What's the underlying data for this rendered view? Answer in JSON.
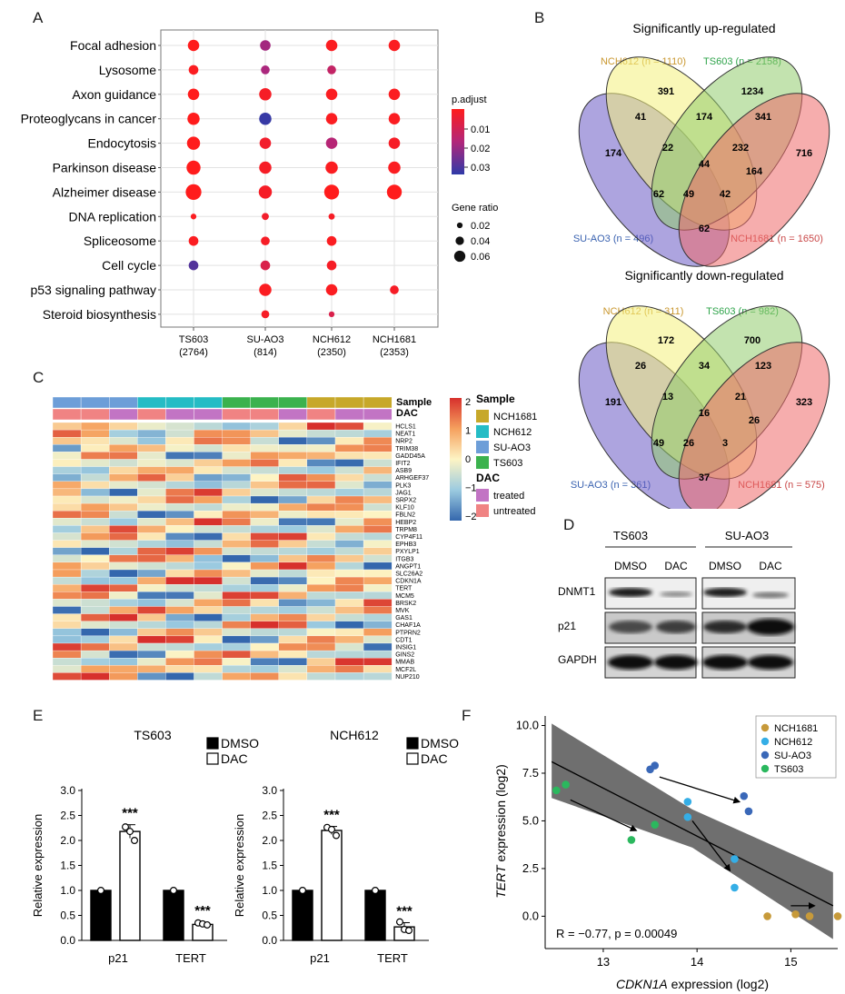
{
  "panels": {
    "a": "A",
    "b": "B",
    "c": "C",
    "d": "D",
    "e": "E",
    "f": "F"
  },
  "dotplot": {
    "pathways": [
      "Focal adhesion",
      "Lysosome",
      "Axon guidance",
      "Proteoglycans in cancer",
      "Endocytosis",
      "Parkinson disease",
      "Alzheimer disease",
      "DNA replication",
      "Spliceosome",
      "Cell cycle",
      "p53 signaling pathway",
      "Steroid biosynthesis"
    ],
    "samples": [
      {
        "name": "TS603",
        "count": "(2764)"
      },
      {
        "name": "SU-AO3",
        "count": "(814)"
      },
      {
        "name": "NCH612",
        "count": "(2350)"
      },
      {
        "name": "NCH1681",
        "count": "(2353)"
      }
    ],
    "dots": [
      {
        "p": 0,
        "s": 0,
        "ratio": 0.045,
        "padj": 0.001
      },
      {
        "p": 0,
        "s": 1,
        "ratio": 0.04,
        "padj": 0.021
      },
      {
        "p": 0,
        "s": 2,
        "ratio": 0.045,
        "padj": 0.002
      },
      {
        "p": 0,
        "s": 3,
        "ratio": 0.045,
        "padj": 0.002
      },
      {
        "p": 1,
        "s": 0,
        "ratio": 0.035,
        "padj": 0.002
      },
      {
        "p": 1,
        "s": 1,
        "ratio": 0.03,
        "padj": 0.02
      },
      {
        "p": 1,
        "s": 2,
        "ratio": 0.03,
        "padj": 0.015
      },
      {
        "p": 2,
        "s": 0,
        "ratio": 0.045,
        "padj": 0.001
      },
      {
        "p": 2,
        "s": 1,
        "ratio": 0.05,
        "padj": 0.003
      },
      {
        "p": 2,
        "s": 2,
        "ratio": 0.045,
        "padj": 0.002
      },
      {
        "p": 2,
        "s": 3,
        "ratio": 0.045,
        "padj": 0.002
      },
      {
        "p": 3,
        "s": 0,
        "ratio": 0.05,
        "padj": 0.001
      },
      {
        "p": 3,
        "s": 1,
        "ratio": 0.05,
        "padj": 0.036
      },
      {
        "p": 3,
        "s": 2,
        "ratio": 0.045,
        "padj": 0.002
      },
      {
        "p": 3,
        "s": 3,
        "ratio": 0.045,
        "padj": 0.002
      },
      {
        "p": 4,
        "s": 0,
        "ratio": 0.055,
        "padj": 0.001
      },
      {
        "p": 4,
        "s": 1,
        "ratio": 0.045,
        "padj": 0.004
      },
      {
        "p": 4,
        "s": 2,
        "ratio": 0.045,
        "padj": 0.018
      },
      {
        "p": 4,
        "s": 3,
        "ratio": 0.045,
        "padj": 0.003
      },
      {
        "p": 5,
        "s": 0,
        "ratio": 0.06,
        "padj": 0.001
      },
      {
        "p": 5,
        "s": 1,
        "ratio": 0.05,
        "padj": 0.003
      },
      {
        "p": 5,
        "s": 2,
        "ratio": 0.05,
        "padj": 0.002
      },
      {
        "p": 5,
        "s": 3,
        "ratio": 0.05,
        "padj": 0.002
      },
      {
        "p": 6,
        "s": 0,
        "ratio": 0.07,
        "padj": 0.001
      },
      {
        "p": 6,
        "s": 1,
        "ratio": 0.055,
        "padj": 0.003
      },
      {
        "p": 6,
        "s": 2,
        "ratio": 0.065,
        "padj": 0.001
      },
      {
        "p": 6,
        "s": 3,
        "ratio": 0.065,
        "padj": 0.001
      },
      {
        "p": 7,
        "s": 0,
        "ratio": 0.012,
        "padj": 0.002
      },
      {
        "p": 7,
        "s": 1,
        "ratio": 0.02,
        "padj": 0.004
      },
      {
        "p": 7,
        "s": 2,
        "ratio": 0.015,
        "padj": 0.003
      },
      {
        "p": 8,
        "s": 0,
        "ratio": 0.035,
        "padj": 0.002
      },
      {
        "p": 8,
        "s": 1,
        "ratio": 0.03,
        "padj": 0.003
      },
      {
        "p": 8,
        "s": 2,
        "ratio": 0.035,
        "padj": 0.002
      },
      {
        "p": 9,
        "s": 0,
        "ratio": 0.035,
        "padj": 0.032
      },
      {
        "p": 9,
        "s": 1,
        "ratio": 0.035,
        "padj": 0.01
      },
      {
        "p": 9,
        "s": 2,
        "ratio": 0.035,
        "padj": 0.003
      },
      {
        "p": 10,
        "s": 1,
        "ratio": 0.05,
        "padj": 0.002
      },
      {
        "p": 10,
        "s": 2,
        "ratio": 0.045,
        "padj": 0.002
      },
      {
        "p": 10,
        "s": 3,
        "ratio": 0.03,
        "padj": 0.003
      },
      {
        "p": 11,
        "s": 1,
        "ratio": 0.025,
        "padj": 0.003
      },
      {
        "p": 11,
        "s": 2,
        "ratio": 0.012,
        "padj": 0.01
      }
    ],
    "legend": {
      "padj_title": "p.adjust",
      "padj_ticks": [
        "0.01",
        "0.02",
        "0.03"
      ],
      "ratio_title": "Gene ratio",
      "ratio_items": [
        {
          "label": "0.02",
          "ratio": 0.02
        },
        {
          "label": "0.04",
          "ratio": 0.04
        },
        {
          "label": "0.06",
          "ratio": 0.06
        }
      ]
    }
  },
  "venn": {
    "up": {
      "title": "Significantly up-regulated",
      "labels": {
        "nch612": "NCH612 (n = 1110)",
        "ts603": "TS603 (n = 2158)",
        "suao3": "SU-AO3 (n = 496)",
        "nch1681": "NCH1681 (n = 1650)"
      },
      "counts": [
        "174",
        "391",
        "1234",
        "716",
        "41",
        "174",
        "341",
        "22",
        "232",
        "44",
        "164",
        "62",
        "49",
        "42",
        "62"
      ]
    },
    "down": {
      "title": "Significantly down-regulated",
      "labels": {
        "nch612": "NCH612 (n = 311)",
        "ts603": "TS603 (n = 982)",
        "suao3": "SU-AO3 (n = 361)",
        "nch1681": "NCH1681 (n = 575)"
      },
      "counts": [
        "191",
        "172",
        "700",
        "323",
        "26",
        "34",
        "123",
        "13",
        "21",
        "16",
        "26",
        "49",
        "26",
        "3",
        "37"
      ]
    }
  },
  "heatmap": {
    "genes": [
      "HCLS1",
      "NEAT1",
      "NRP2",
      "TRIM38",
      "GADD45A",
      "IFIT2",
      "ASB9",
      "ARHGEF37",
      "PLK3",
      "JAG1",
      "SRPX2",
      "KLF10",
      "FBLN2",
      "HEBP2",
      "TRPM8",
      "CYP4F11",
      "EPHB3",
      "PXYLP1",
      "ITGB3",
      "ANGPT1",
      "SLC26A2",
      "CDKN1A",
      "TERT",
      "MCM5",
      "BRSK2",
      "MVK",
      "GAS1",
      "CHAF1A",
      "PTPRN2",
      "CDT1",
      "INSIG1",
      "GINS2",
      "MMAB",
      "MCF2L",
      "NUP210"
    ],
    "annotation_labels": {
      "sample": "Sample",
      "dac": "DAC"
    },
    "legend": {
      "scale_ticks": [
        "2",
        "1",
        "0",
        "−1",
        "−2"
      ],
      "sample_title": "Sample",
      "samples": [
        {
          "label": "NCH1681",
          "color": "#c7a82a"
        },
        {
          "label": "NCH612",
          "color": "#25bcc5"
        },
        {
          "label": "SU-AO3",
          "color": "#6d9ed8"
        },
        {
          "label": "TS603",
          "color": "#3bb24e"
        }
      ],
      "dac_title": "DAC",
      "dac": [
        {
          "label": "treated",
          "color": "#c274c4"
        },
        {
          "label": "untreated",
          "color": "#f08383"
        }
      ]
    }
  },
  "western": {
    "groups": [
      "TS603",
      "SU-AO3"
    ],
    "lanes": [
      "DMSO",
      "DAC",
      "DMSO",
      "DAC"
    ],
    "proteins": [
      "DNMT1",
      "p21",
      "GAPDH"
    ]
  },
  "chart_data": [
    {
      "type": "bar",
      "title": "TS603",
      "categories": [
        "p21",
        "TERT"
      ],
      "series": [
        {
          "name": "DMSO",
          "values": [
            1.0,
            1.0
          ],
          "points": [
            [
              1.0
            ],
            [
              1.0
            ]
          ]
        },
        {
          "name": "DAC",
          "values": [
            2.18,
            0.32
          ],
          "points": [
            [
              2.27,
              2.18,
              2.0
            ],
            [
              0.35,
              0.33,
              0.31
            ]
          ]
        }
      ],
      "significance": [
        "***",
        "***"
      ],
      "ylabel": "Relative expression",
      "ylim": [
        0,
        3.0
      ],
      "yticks": [
        "0.0",
        "0.5",
        "1.0",
        "1.5",
        "2.0",
        "2.5",
        "3.0"
      ]
    },
    {
      "type": "bar",
      "title": "NCH612",
      "categories": [
        "p21",
        "TERT"
      ],
      "series": [
        {
          "name": "DMSO",
          "values": [
            1.0,
            1.0
          ],
          "points": [
            [
              1.0
            ],
            [
              1.0
            ]
          ]
        },
        {
          "name": "DAC",
          "values": [
            2.2,
            0.27
          ],
          "points": [
            [
              2.26,
              2.22,
              2.1
            ],
            [
              0.37,
              0.22,
              0.2
            ]
          ]
        }
      ],
      "significance": [
        "***",
        "***"
      ],
      "ylabel": "Relative expression",
      "ylim": [
        0,
        3.0
      ],
      "yticks": [
        "0.0",
        "0.5",
        "1.0",
        "1.5",
        "2.0",
        "2.5",
        "3.0"
      ]
    },
    {
      "type": "scatter",
      "xlabel": "CDKN1A",
      "xlabel_suffix": " expression (log2)",
      "ylabel": "TERT",
      "ylabel_suffix": " expression (log2)",
      "xlim": [
        12.4,
        15.5
      ],
      "ylim": [
        -1.6,
        10.5
      ],
      "xticks": [
        "13",
        "14",
        "15"
      ],
      "yticks": [
        "0.0",
        "2.5",
        "5.0",
        "7.5",
        "10.0"
      ],
      "annotation": "R = −0.77, p = 0.00049",
      "series": [
        {
          "name": "NCH1681",
          "color": "#c79a3a",
          "points": [
            [
              14.75,
              0.0
            ],
            [
              15.05,
              0.1
            ],
            [
              15.2,
              0.0
            ],
            [
              15.5,
              0.0
            ]
          ]
        },
        {
          "name": "NCH612",
          "color": "#35aee6",
          "points": [
            [
              13.9,
              6.0
            ],
            [
              13.9,
              5.2
            ],
            [
              14.4,
              3.0
            ],
            [
              14.4,
              1.5
            ]
          ]
        },
        {
          "name": "SU-AO3",
          "color": "#3a68b8",
          "points": [
            [
              13.5,
              7.7
            ],
            [
              13.55,
              7.9
            ],
            [
              14.5,
              6.3
            ],
            [
              14.55,
              5.5
            ]
          ]
        },
        {
          "name": "TS603",
          "color": "#2bb85e",
          "points": [
            [
              12.5,
              6.6
            ],
            [
              12.6,
              6.9
            ],
            [
              13.3,
              4.0
            ],
            [
              13.55,
              4.8
            ]
          ]
        }
      ],
      "fit": {
        "start": [
          12.45,
          8.1
        ],
        "end": [
          15.45,
          0.55
        ]
      },
      "band": {
        "lower": [
          [
            12.45,
            6.2
          ],
          [
            13.95,
            3.6
          ],
          [
            15.45,
            -1.2
          ]
        ],
        "upper": [
          [
            12.45,
            10.1
          ],
          [
            13.95,
            5.6
          ],
          [
            15.45,
            2.3
          ]
        ]
      },
      "arrows": [
        [
          [
            13.6,
            7.3
          ],
          [
            14.45,
            6.0
          ]
        ],
        [
          [
            12.65,
            6.1
          ],
          [
            13.35,
            4.5
          ]
        ],
        [
          [
            13.95,
            5.0
          ],
          [
            14.35,
            2.4
          ]
        ],
        [
          [
            15.0,
            0.55
          ],
          [
            15.25,
            0.55
          ]
        ]
      ]
    }
  ]
}
